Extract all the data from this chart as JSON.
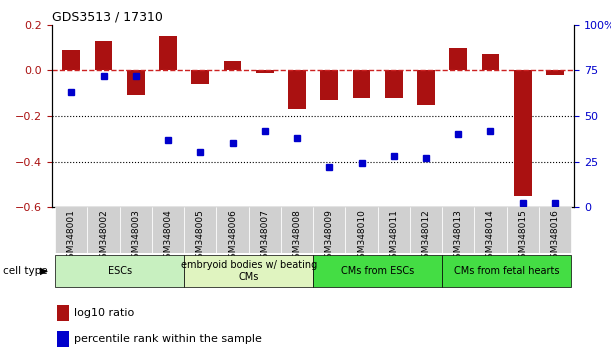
{
  "title": "GDS3513 / 17310",
  "samples": [
    "GSM348001",
    "GSM348002",
    "GSM348003",
    "GSM348004",
    "GSM348005",
    "GSM348006",
    "GSM348007",
    "GSM348008",
    "GSM348009",
    "GSM348010",
    "GSM348011",
    "GSM348012",
    "GSM348013",
    "GSM348014",
    "GSM348015",
    "GSM348016"
  ],
  "log10_ratio": [
    0.09,
    0.13,
    -0.11,
    0.15,
    -0.06,
    0.04,
    -0.01,
    -0.17,
    -0.13,
    -0.12,
    -0.12,
    -0.15,
    0.1,
    0.07,
    -0.55,
    -0.02
  ],
  "percentile_rank": [
    63,
    72,
    72,
    37,
    30,
    35,
    42,
    38,
    22,
    24,
    28,
    27,
    40,
    42,
    2,
    2
  ],
  "cell_types": [
    {
      "label": "ESCs",
      "start": 0,
      "end": 3,
      "color": "#c8f0c0"
    },
    {
      "label": "embryoid bodies w/ beating\nCMs",
      "start": 4,
      "end": 7,
      "color": "#e0f4c0"
    },
    {
      "label": "CMs from ESCs",
      "start": 8,
      "end": 11,
      "color": "#40d840"
    },
    {
      "label": "CMs from fetal hearts",
      "start": 12,
      "end": 15,
      "color": "#40d840"
    }
  ],
  "bar_color": "#aa1111",
  "dot_color": "#0000cc",
  "dashed_line_color": "#cc2222",
  "ylim_left": [
    -0.6,
    0.2
  ],
  "ylim_right": [
    0,
    100
  ],
  "yticks_left": [
    0.2,
    0.0,
    -0.2,
    -0.4,
    -0.6
  ],
  "yticks_right": [
    100,
    75,
    50,
    25,
    0
  ],
  "hline_positions": [
    -0.2,
    -0.4
  ],
  "background_color": "#ffffff",
  "group_colors": [
    "#c8f0c0",
    "#e0f4c0",
    "#44dd44",
    "#44dd44"
  ]
}
